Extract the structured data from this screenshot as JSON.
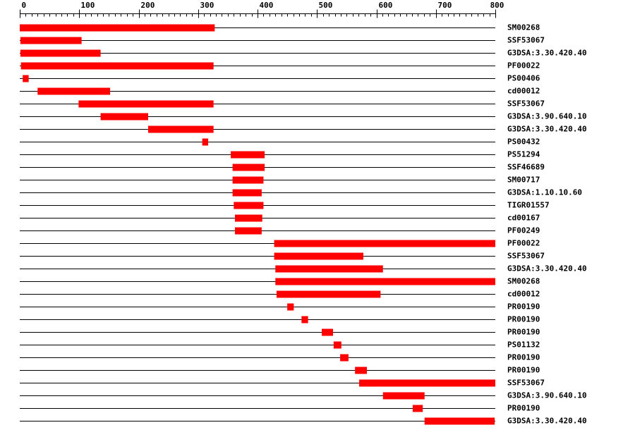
{
  "chart_data": {
    "type": "range",
    "categories": [
      "SM00268",
      "SSF53067",
      "G3DSA:3.30.420.40",
      "PF00022",
      "PS00406",
      "cd00012",
      "SSF53067",
      "G3DSA:3.90.640.10",
      "G3DSA:3.30.420.40",
      "PS00432",
      "PS51294",
      "SSF46689",
      "SM00717",
      "G3DSA:1.10.10.60",
      "TIGR01557",
      "cd00167",
      "PF00249",
      "PF00022",
      "SSF53067",
      "G3DSA:3.30.420.40",
      "SM00268",
      "cd00012",
      "PR00190",
      "PR00190",
      "PR00190",
      "PS01132",
      "PR00190",
      "PR00190",
      "SSF53067",
      "G3DSA:3.90.640.10",
      "PR00190",
      "G3DSA:3.30.420.40"
    ],
    "starts": [
      0,
      1,
      1,
      2,
      5,
      30,
      99,
      136,
      216,
      307,
      355,
      358,
      358,
      358,
      360,
      362,
      362,
      428,
      428,
      430,
      430,
      432,
      450,
      474,
      508,
      528,
      539,
      564,
      571,
      611,
      661,
      681
    ],
    "ends": [
      328,
      104,
      136,
      326,
      15,
      152,
      326,
      216,
      326,
      317,
      412,
      412,
      410,
      407,
      410,
      408,
      407,
      800,
      578,
      611,
      800,
      607,
      461,
      485,
      527,
      541,
      553,
      584,
      800,
      681,
      678,
      799
    ],
    "color": "#ff0000",
    "xlim": [
      0,
      800
    ],
    "xticks": [
      0,
      100,
      200,
      300,
      400,
      500,
      600,
      700,
      800
    ],
    "minor_tick_step": 10
  }
}
